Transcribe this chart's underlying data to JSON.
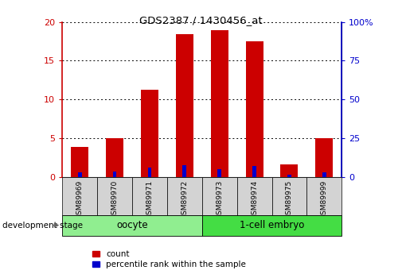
{
  "title": "GDS2387 / 1430456_at",
  "samples": [
    "GSM89969",
    "GSM89970",
    "GSM89971",
    "GSM89972",
    "GSM89973",
    "GSM89974",
    "GSM89975",
    "GSM89999"
  ],
  "count_values": [
    3.8,
    5.0,
    11.2,
    18.4,
    18.9,
    17.5,
    1.6,
    5.0
  ],
  "percentile_values": [
    3.0,
    3.2,
    5.8,
    7.5,
    4.9,
    7.1,
    1.4,
    3.0
  ],
  "left_ylim": [
    0,
    20
  ],
  "right_ylim": [
    0,
    100
  ],
  "left_yticks": [
    0,
    5,
    10,
    15,
    20
  ],
  "right_yticks": [
    0,
    25,
    50,
    75,
    100
  ],
  "right_yticklabels": [
    "0",
    "25",
    "50",
    "75",
    "100%"
  ],
  "oocyte_color": "#90EE90",
  "embryo_color": "#44DD44",
  "bar_color": "#CC0000",
  "percentile_color": "#0000CC",
  "bar_width": 0.5,
  "left_axis_color": "#CC0000",
  "right_axis_color": "#0000CC",
  "legend_count_label": "count",
  "legend_percentile_label": "percentile rank within the sample",
  "dev_stage_label": "development stage",
  "tick_label_area_color": "#D3D3D3",
  "group_border_color": "#888888"
}
